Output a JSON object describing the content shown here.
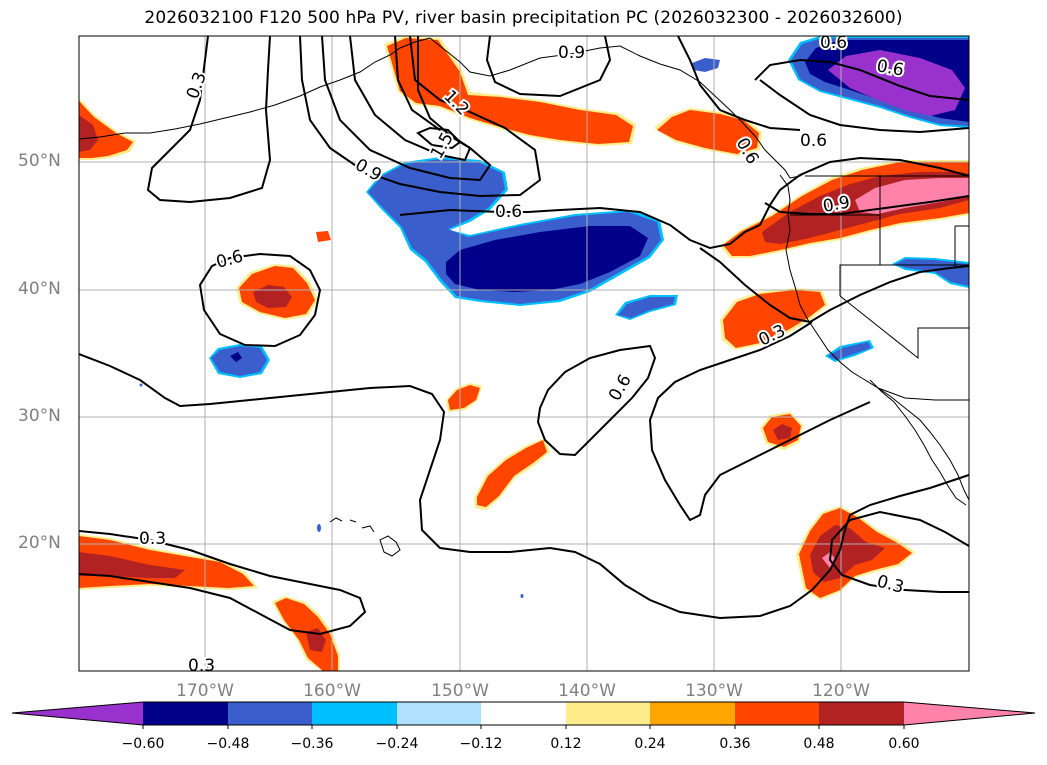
{
  "title": "2026032100 F120 500 hPa PV, river basin precipitation PC (2026032300 - 2026032600)",
  "lat_labels": [
    "50°N",
    "40°N",
    "30°N",
    "20°N"
  ],
  "lon_labels": [
    "170°W",
    "160°W",
    "150°W",
    "140°W",
    "130°W",
    "120°W"
  ],
  "contour_labels": [
    "0.3",
    "0.9",
    "1.2",
    "1.5",
    "0.9",
    "0.6",
    "0.6",
    "0.6",
    "0.9",
    "0.6",
    "0.6",
    "0.3",
    "0.3",
    "0.3",
    "0.3",
    "0.6",
    "0.6"
  ],
  "colorbar": {
    "ticks": [
      "−0.60",
      "−0.48",
      "−0.36",
      "−0.24",
      "−0.12",
      "0.12",
      "0.24",
      "0.36",
      "0.48",
      "0.60"
    ],
    "colors": [
      "#9932cc",
      "#00008b",
      "#3a5fcd",
      "#00bfff",
      "#b0e2ff",
      "#ffffff",
      "#ffec8b",
      "#ffa500",
      "#ff4500",
      "#b22222",
      "#ff82ab"
    ]
  }
}
